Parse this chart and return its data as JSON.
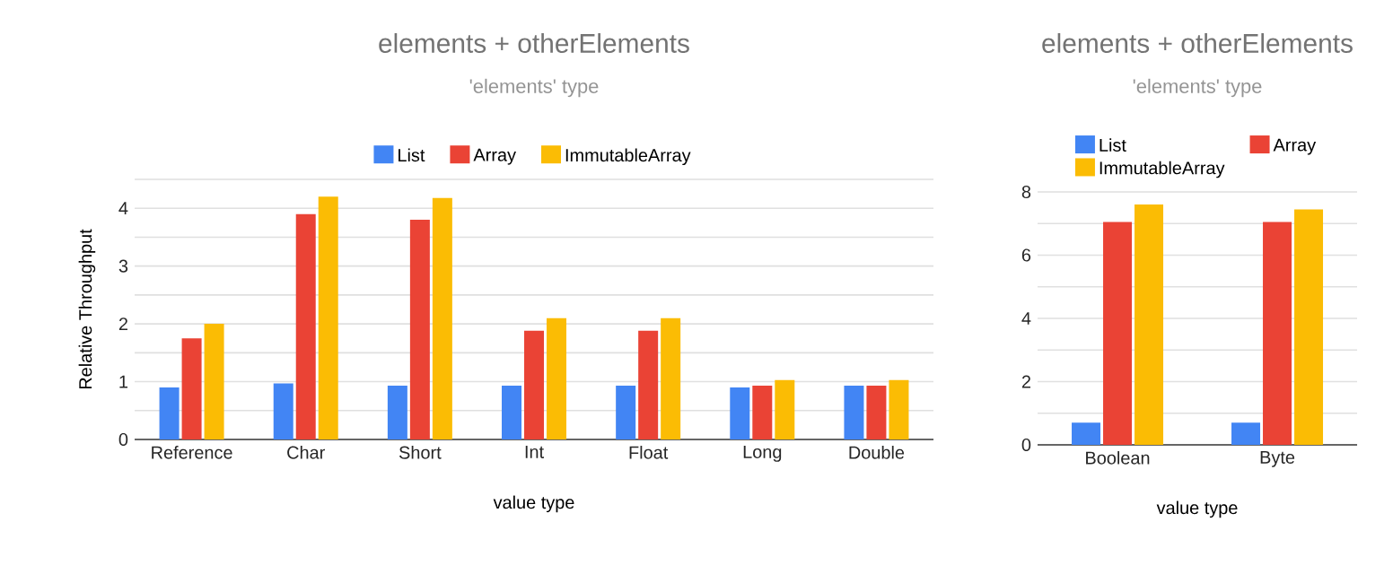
{
  "chart_data": [
    {
      "type": "bar",
      "title": "elements + otherElements",
      "subtitle": "'elements' type",
      "xlabel": "value type",
      "ylabel": "Relative Throughput",
      "categories": [
        "Reference",
        "Char",
        "Short",
        "Int",
        "Float",
        "Long",
        "Double"
      ],
      "series": [
        {
          "name": "List",
          "color": "#4285f4",
          "values": [
            0.9,
            0.97,
            0.93,
            0.93,
            0.93,
            0.9,
            0.93
          ]
        },
        {
          "name": "Array",
          "color": "#ea4335",
          "values": [
            1.75,
            3.9,
            3.8,
            1.88,
            1.88,
            0.93,
            0.93
          ]
        },
        {
          "name": "ImmutableArray",
          "color": "#fbbc04",
          "values": [
            2.0,
            4.2,
            4.18,
            2.1,
            2.1,
            1.03,
            1.03
          ]
        }
      ],
      "ylim": [
        0,
        4.5
      ],
      "yticks": [
        0,
        {
          "value": 0.5,
          "label": null
        },
        1,
        {
          "value": 1.5,
          "label": null
        },
        2,
        {
          "value": 2.5,
          "label": null
        },
        3,
        {
          "value": 3.5,
          "label": null
        },
        4,
        {
          "value": 4.5,
          "label": null
        }
      ],
      "grid": "y",
      "legend": "top"
    },
    {
      "type": "bar",
      "title": "elements + otherElements",
      "subtitle": "'elements' type",
      "xlabel": "value type",
      "categories": [
        "Boolean",
        "Byte"
      ],
      "series": [
        {
          "name": "List",
          "color": "#4285f4",
          "values": [
            0.7,
            0.7
          ]
        },
        {
          "name": "Array",
          "color": "#ea4335",
          "values": [
            7.05,
            7.05
          ]
        },
        {
          "name": "ImmutableArray",
          "color": "#fbbc04",
          "values": [
            7.6,
            7.45
          ]
        }
      ],
      "ylim": [
        0,
        8
      ],
      "yticks": [
        0,
        {
          "value": 1,
          "label": null
        },
        2,
        {
          "value": 3,
          "label": null
        },
        4,
        {
          "value": 5,
          "label": null
        },
        6,
        {
          "value": 7,
          "label": null
        },
        8
      ],
      "grid": "y",
      "legend": "top"
    }
  ]
}
